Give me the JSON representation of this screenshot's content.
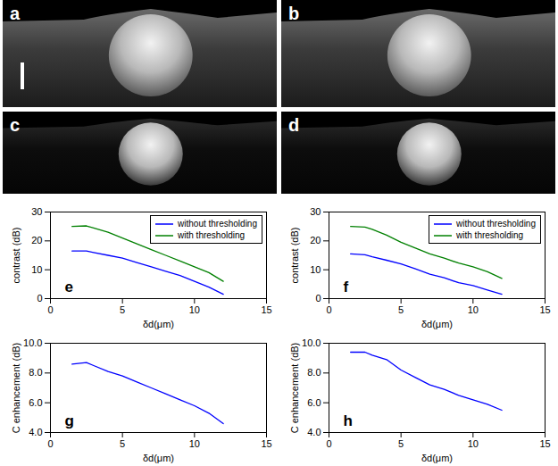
{
  "images": [
    {
      "label": "a"
    },
    {
      "label": "b"
    },
    {
      "label": "c"
    },
    {
      "label": "d"
    }
  ],
  "chart_data": [
    {
      "type": "line",
      "annotation": "e",
      "x_label": "δd(μm)",
      "y_label": "contrast (dB)",
      "x": [
        1.5,
        2.5,
        3,
        4,
        5,
        6,
        7,
        8,
        9,
        10,
        11,
        12
      ],
      "series": [
        {
          "name": "without thresholding",
          "color": "#0000ff",
          "values": [
            16.5,
            16.5,
            16.0,
            15.0,
            14.0,
            12.5,
            11.0,
            9.5,
            8.0,
            6.0,
            4.0,
            1.5
          ]
        },
        {
          "name": "with thresholding",
          "color": "#008000",
          "values": [
            25.0,
            25.2,
            24.5,
            23.0,
            21.0,
            19.0,
            17.0,
            15.0,
            13.0,
            11.0,
            9.0,
            6.0
          ]
        }
      ],
      "xlim": [
        0,
        15
      ],
      "xticks": [
        0,
        5,
        10,
        15
      ],
      "ylim": [
        0,
        30
      ],
      "yticks": [
        0,
        10,
        20,
        30
      ],
      "legend": "upper right",
      "grid": false
    },
    {
      "type": "line",
      "annotation": "f",
      "x_label": "δd(μm)",
      "y_label": "contrast (dB)",
      "x": [
        1.5,
        2.5,
        3,
        4,
        5,
        6,
        7,
        8,
        9,
        10,
        11,
        12
      ],
      "series": [
        {
          "name": "without thresholding",
          "color": "#0000ff",
          "values": [
            15.5,
            15.2,
            14.5,
            13.3,
            12.0,
            10.3,
            8.5,
            7.2,
            5.5,
            4.5,
            3.0,
            1.5
          ]
        },
        {
          "name": "with thresholding",
          "color": "#008000",
          "values": [
            25.0,
            24.8,
            24.0,
            22.0,
            19.5,
            17.5,
            15.5,
            14.0,
            12.3,
            11.0,
            9.3,
            7.0
          ]
        }
      ],
      "xlim": [
        0,
        15
      ],
      "xticks": [
        0,
        5,
        10,
        15
      ],
      "ylim": [
        0,
        30
      ],
      "yticks": [
        0,
        10,
        20,
        30
      ],
      "legend": "upper right",
      "grid": false
    },
    {
      "type": "line",
      "annotation": "g",
      "x_label": "δd(μm)",
      "y_label": "C enhancement (dB)",
      "x": [
        1.5,
        2.5,
        3,
        4,
        5,
        6,
        7,
        8,
        9,
        10,
        11,
        12
      ],
      "values": [
        8.6,
        8.7,
        8.5,
        8.1,
        7.8,
        7.4,
        7.0,
        6.6,
        6.2,
        5.8,
        5.3,
        4.6
      ],
      "color": "#0000ff",
      "xlim": [
        0,
        15
      ],
      "xticks": [
        0,
        5,
        10,
        15
      ],
      "ylim": [
        4,
        10
      ],
      "yticks": [
        4,
        6,
        8,
        10
      ],
      "grid": false
    },
    {
      "type": "line",
      "annotation": "h",
      "x_label": "δd(μm)",
      "y_label": "C enhancement (dB)",
      "x": [
        1.5,
        2.5,
        3,
        4,
        5,
        6,
        7,
        8,
        9,
        10,
        11,
        12
      ],
      "values": [
        9.4,
        9.4,
        9.2,
        8.9,
        8.2,
        7.7,
        7.2,
        6.9,
        6.5,
        6.2,
        5.9,
        5.5
      ],
      "color": "#0000ff",
      "xlim": [
        0,
        15
      ],
      "xticks": [
        0,
        5,
        10,
        15
      ],
      "ylim": [
        4,
        10
      ],
      "yticks": [
        4,
        6,
        8,
        10
      ],
      "grid": false
    }
  ]
}
